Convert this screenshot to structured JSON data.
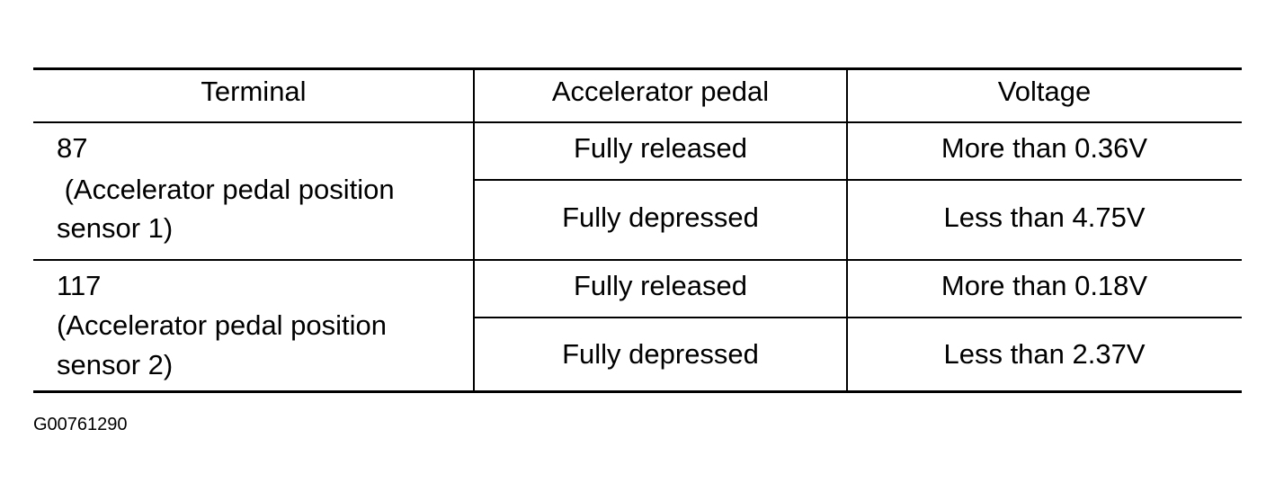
{
  "table": {
    "headers": [
      "Terminal",
      "Accelerator pedal",
      "Voltage"
    ],
    "groups": [
      {
        "terminal": "87",
        "terminal_desc_line1": " (Accelerator pedal position",
        "terminal_desc_line2": "sensor 1)",
        "rows": [
          {
            "pedal": "Fully released",
            "voltage": "More than 0.36V"
          },
          {
            "pedal": "Fully depressed",
            "voltage": "Less than 4.75V"
          }
        ]
      },
      {
        "terminal": "117",
        "terminal_desc_line1": "(Accelerator pedal position",
        "terminal_desc_line2": "sensor 2)",
        "rows": [
          {
            "pedal": "Fully released",
            "voltage": "More than 0.18V"
          },
          {
            "pedal": "Fully depressed",
            "voltage": "Less than 2.37V"
          }
        ]
      }
    ]
  },
  "caption": "G00761290"
}
